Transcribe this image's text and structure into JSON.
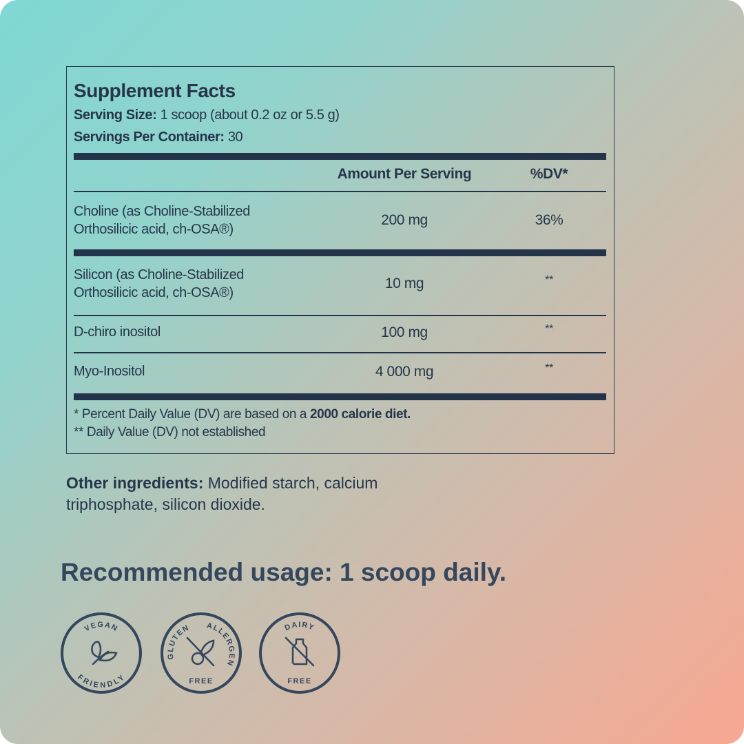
{
  "facts": {
    "title": "Supplement Facts",
    "serving_size_label": "Serving Size:",
    "serving_size_value": " 1 scoop (about 0.2 oz or 5.5 g)",
    "servings_label": "Servings Per Container:",
    "servings_value": " 30",
    "col_amount": "Amount Per Serving",
    "col_dv": "%DV*",
    "rows": [
      {
        "line1": "Choline (as Choline-Stabilized",
        "line2": "Orthosilicic acid, ch-OSA®)",
        "amount": "200 mg",
        "dv": "36%"
      },
      {
        "line1": "Silicon (as Choline-Stabilized",
        "line2": "Orthosilicic acid, ch-OSA®)",
        "amount": "10 mg",
        "dv": "**"
      },
      {
        "line1": "D-chiro inositol",
        "amount": "100 mg",
        "dv": "**"
      },
      {
        "line1": "Myo-Inositol",
        "amount": "4 000 mg",
        "dv": "**"
      }
    ],
    "footnote1_a": "* Percent Daily Value (DV) are based on a ",
    "footnote1_b": "2000 calorie diet.",
    "footnote2": "** Daily Value (DV) not established"
  },
  "other": {
    "label": "Other ingredients:",
    "line1": " Modified starch, calcium",
    "line2": "triphosphate, silicon dioxide."
  },
  "usage": "Recommended usage: 1 scoop daily.",
  "badges": [
    {
      "top": "VEGAN",
      "bottom": "FRIENDLY",
      "icon": "leaf-icon"
    },
    {
      "top_left": "GLUTEN",
      "top_right": "ALLERGEN",
      "bottom": "FREE",
      "icon": "wheat-crossed-icon"
    },
    {
      "top": "DAIRY",
      "bottom": "FREE",
      "icon": "milk-bottle-crossed-icon"
    }
  ],
  "colors": {
    "text": "#26364a",
    "gradient_start": "#7fd7d4",
    "gradient_end": "#f7a791"
  }
}
